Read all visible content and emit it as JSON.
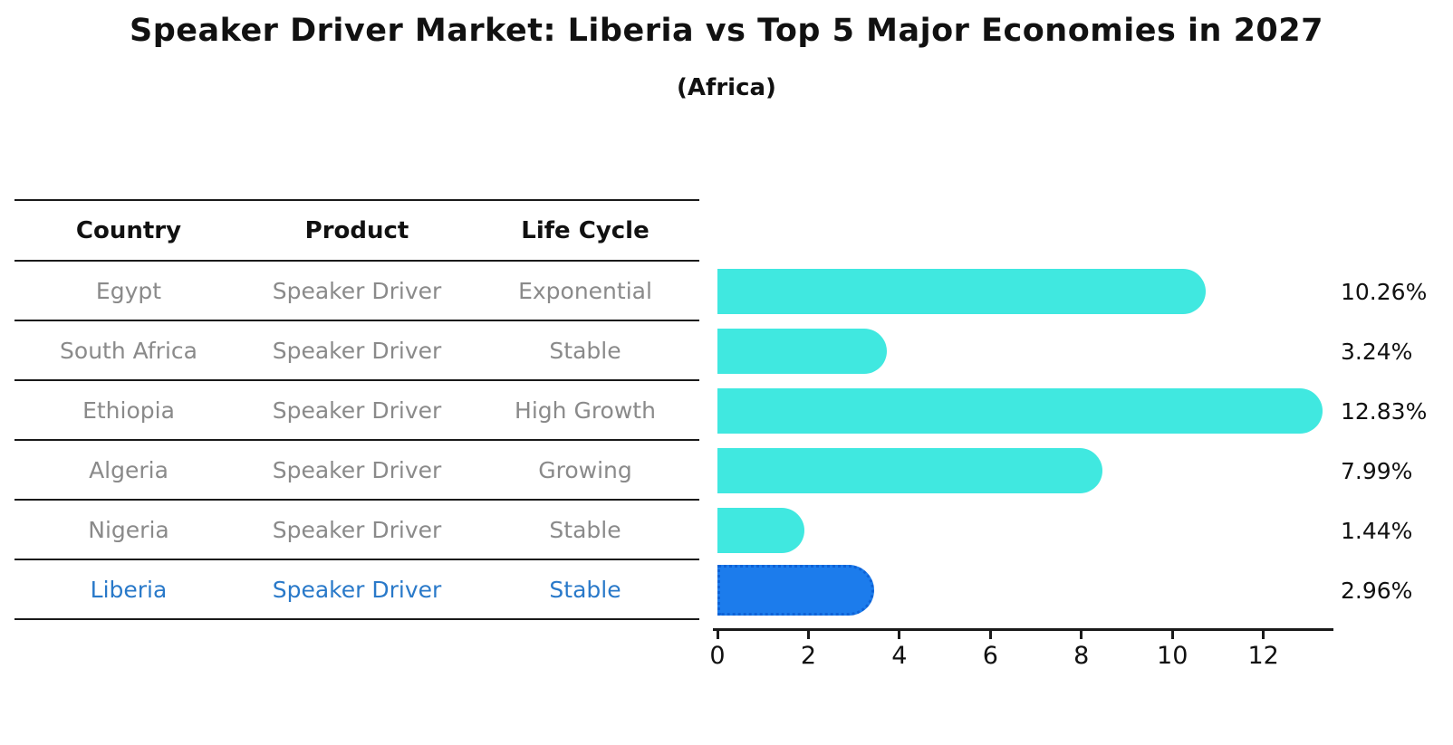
{
  "title": "Speaker Driver Market: Liberia vs Top 5 Major Economies in 2027",
  "subtitle": "(Africa)",
  "table": {
    "headers": {
      "country": "Country",
      "product": "Product",
      "life_cycle": "Life Cycle"
    },
    "rows": [
      {
        "country": "Egypt",
        "product": "Speaker Driver",
        "life_cycle": "Exponential"
      },
      {
        "country": "South Africa",
        "product": "Speaker Driver",
        "life_cycle": "Stable"
      },
      {
        "country": "Ethiopia",
        "product": "Speaker Driver",
        "life_cycle": "High Growth"
      },
      {
        "country": "Algeria",
        "product": "Speaker Driver",
        "life_cycle": "Growing"
      },
      {
        "country": "Nigeria",
        "product": "Speaker Driver",
        "life_cycle": "Stable"
      },
      {
        "country": "Liberia",
        "product": "Speaker Driver",
        "life_cycle": "Stable"
      }
    ],
    "highlight_row": "Liberia"
  },
  "chart_data": {
    "type": "bar",
    "orientation": "horizontal",
    "title": "Speaker Driver Market: Liberia vs Top 5 Major Economies in 2027",
    "subtitle": "(Africa)",
    "categories": [
      "Egypt",
      "South Africa",
      "Ethiopia",
      "Algeria",
      "Nigeria",
      "Liberia"
    ],
    "values": [
      10.26,
      3.24,
      12.83,
      7.99,
      1.44,
      2.96
    ],
    "value_labels": [
      "10.26%",
      "3.24%",
      "12.83%",
      "7.99%",
      "1.44%",
      "2.96%"
    ],
    "x_ticks": [
      "0",
      "2",
      "4",
      "6",
      "8",
      "10",
      "12"
    ],
    "x_tick_values": [
      0,
      2,
      4,
      6,
      8,
      10,
      12
    ],
    "xlim": [
      0,
      13.5
    ],
    "grid": false,
    "legend": false,
    "bar_color": "#40E8E0",
    "highlight_index": 5,
    "highlight_bar_color": "#1C7CEC",
    "highlight_border_color": "#0E62D6",
    "highlight_text_color": "#2979C9"
  }
}
